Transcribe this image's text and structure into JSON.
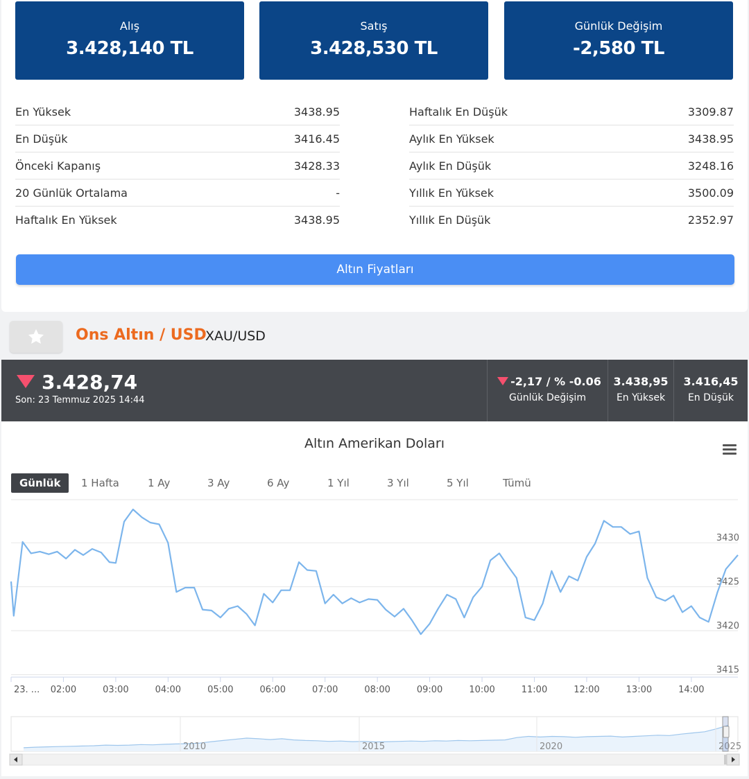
{
  "quote_boxes": [
    {
      "label": "Alış",
      "value": "3.428,140 TL"
    },
    {
      "label": "Satış",
      "value": "3.428,530 TL"
    },
    {
      "label": "Günlük Değişim",
      "value": "-2,580 TL"
    }
  ],
  "stats_left": [
    {
      "label": "En Yüksek",
      "value": "3438.95"
    },
    {
      "label": "En Düşük",
      "value": "3416.45"
    },
    {
      "label": "Önceki Kapanış",
      "value": "3428.33"
    },
    {
      "label": "20 Günlük Ortalama",
      "value": "-"
    },
    {
      "label": "Haftalık En Yüksek",
      "value": "3438.95"
    }
  ],
  "stats_right": [
    {
      "label": "Haftalık En Düşük",
      "value": "3309.87"
    },
    {
      "label": "Aylık En Yüksek",
      "value": "3438.95"
    },
    {
      "label": "Aylık En Düşük",
      "value": "3248.16"
    },
    {
      "label": "Yıllık En Yüksek",
      "value": "3500.09"
    },
    {
      "label": "Yıllık En Düşük",
      "value": "2352.97"
    }
  ],
  "gold_button_label": "Altın Fiyatları",
  "asset": {
    "name": "Ons Altın / USD",
    "code": "XAU/USD"
  },
  "ticker": {
    "price": "3.428,74",
    "last_update": "Son: 23 Temmuz 2025 14:44",
    "daily_change": "-2,17 / % -0.06",
    "daily_change_label": "Günlük Değişim",
    "high": "3.438,95",
    "high_label": "En Yüksek",
    "low": "3.416,45",
    "low_label": "En Düşük",
    "down_color": "#f5506e"
  },
  "ranges": [
    "Günlük",
    "1 Hafta",
    "1 Ay",
    "3 Ay",
    "6 Ay",
    "1 Yıl",
    "3 Yıl",
    "5 Yıl",
    "Tümü"
  ],
  "active_range": "Günlük",
  "chart_data": {
    "type": "line",
    "title": "Altın Amerikan Doları",
    "xlabel": "",
    "ylabel": "",
    "x_tick_labels": [
      "23. ...",
      "02:00",
      "03:00",
      "04:00",
      "05:00",
      "06:00",
      "07:00",
      "08:00",
      "09:00",
      "10:00",
      "11:00",
      "12:00",
      "13:00",
      "14:00"
    ],
    "y_tick_labels": [
      "3430",
      "3425",
      "3420",
      "3415"
    ],
    "ylim": [
      3414.8,
      3434.9
    ],
    "xlim": [
      1.0,
      14.89
    ],
    "grid": true,
    "line_color": "#7cb5ec",
    "series": [
      {
        "x": [
          1.0,
          1.05,
          1.22,
          1.38,
          1.55,
          1.72,
          1.88,
          2.05,
          2.22,
          2.38,
          2.55,
          2.72,
          2.88,
          3.0,
          3.16,
          3.33,
          3.5,
          3.66,
          3.83,
          4.0,
          4.16,
          4.33,
          4.5,
          4.66,
          4.83,
          5.0,
          5.16,
          5.33,
          5.5,
          5.66,
          5.83,
          6.0,
          6.16,
          6.33,
          6.5,
          6.66,
          6.83,
          7.0,
          7.16,
          7.33,
          7.5,
          7.66,
          7.83,
          8.0,
          8.16,
          8.33,
          8.5,
          8.66,
          8.83,
          9.0,
          9.16,
          9.33,
          9.5,
          9.66,
          9.83,
          10.0,
          10.16,
          10.33,
          10.5,
          10.66,
          10.83,
          11.0,
          11.16,
          11.33,
          11.5,
          11.66,
          11.83,
          12.0,
          12.16,
          12.33,
          12.5,
          12.66,
          12.83,
          13.0,
          13.16,
          13.33,
          13.5,
          13.66,
          13.83,
          14.0,
          14.16,
          14.33,
          14.5,
          14.66,
          14.89
        ],
        "y": [
          3425.6,
          3421.7,
          3430.1,
          3428.8,
          3429.0,
          3428.7,
          3429.0,
          3428.2,
          3429.2,
          3428.6,
          3429.3,
          3428.9,
          3427.8,
          3427.7,
          3432.4,
          3433.8,
          3432.9,
          3432.3,
          3432.1,
          3430.0,
          3424.4,
          3424.9,
          3424.9,
          3422.4,
          3422.3,
          3421.5,
          3422.5,
          3422.8,
          3421.9,
          3420.6,
          3424.2,
          3423.2,
          3424.6,
          3424.6,
          3427.8,
          3426.9,
          3426.8,
          3423.1,
          3424.1,
          3423.1,
          3423.7,
          3423.2,
          3423.6,
          3423.5,
          3422.4,
          3421.6,
          3422.5,
          3421.2,
          3419.6,
          3420.8,
          3422.5,
          3424.1,
          3423.6,
          3421.5,
          3423.8,
          3425.0,
          3428.0,
          3428.8,
          3427.3,
          3426.0,
          3421.5,
          3421.2,
          3423.1,
          3426.8,
          3424.4,
          3426.2,
          3425.7,
          3428.4,
          3429.9,
          3432.5,
          3431.8,
          3431.8,
          3431.0,
          3431.3,
          3426.0,
          3423.8,
          3423.4,
          3424.0,
          3422.1,
          3422.8,
          3421.5,
          3421.0,
          3424.4,
          3427.0,
          3428.6
        ]
      }
    ]
  },
  "navigator": {
    "year_labels": [
      "2010",
      "2015",
      "2020",
      "2025"
    ],
    "x": [
      0,
      10,
      20,
      30,
      40,
      50,
      60,
      70,
      80,
      90,
      100,
      110,
      120,
      130,
      140,
      150,
      160,
      170,
      180,
      190,
      200,
      210,
      220,
      230,
      240,
      250,
      260,
      270,
      280,
      290,
      300,
      310,
      320,
      330,
      340,
      350,
      360,
      370,
      380,
      390,
      400,
      410,
      420,
      430,
      440,
      450,
      460,
      470,
      480,
      490,
      500,
      510,
      520,
      530,
      540,
      550,
      560,
      570,
      580,
      590,
      600
    ],
    "y": [
      0.05,
      0.07,
      0.08,
      0.09,
      0.1,
      0.11,
      0.12,
      0.14,
      0.13,
      0.14,
      0.16,
      0.15,
      0.17,
      0.18,
      0.19,
      0.21,
      0.26,
      0.3,
      0.34,
      0.38,
      0.36,
      0.33,
      0.36,
      0.32,
      0.3,
      0.29,
      0.27,
      0.28,
      0.26,
      0.27,
      0.25,
      0.26,
      0.27,
      0.28,
      0.27,
      0.29,
      0.28,
      0.3,
      0.29,
      0.3,
      0.31,
      0.32,
      0.4,
      0.44,
      0.42,
      0.44,
      0.43,
      0.41,
      0.43,
      0.44,
      0.45,
      0.42,
      0.44,
      0.46,
      0.48,
      0.47,
      0.52,
      0.56,
      0.6,
      0.7,
      0.82
    ]
  }
}
